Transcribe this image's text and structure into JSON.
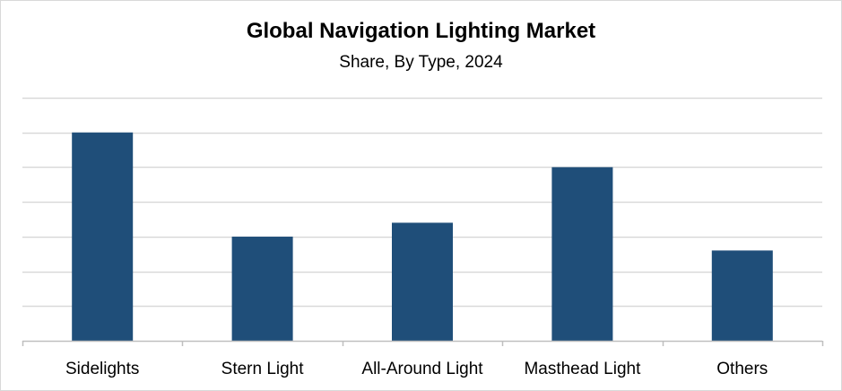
{
  "chart_data": {
    "type": "bar",
    "title": "Global Navigation Lighting Market",
    "subtitle": "Share, By Type, 2024",
    "categories": [
      "Sidelights",
      "Stern Light",
      "All-Around Light",
      "Masthead Light",
      "Others"
    ],
    "values": [
      30,
      15,
      17,
      25,
      13
    ],
    "ylim": [
      0,
      35
    ],
    "grid": true,
    "legend": "none",
    "colors": {
      "bar": "#1f4e79",
      "grid": "#d9d9d9",
      "axis": "#bfbfbf"
    }
  }
}
